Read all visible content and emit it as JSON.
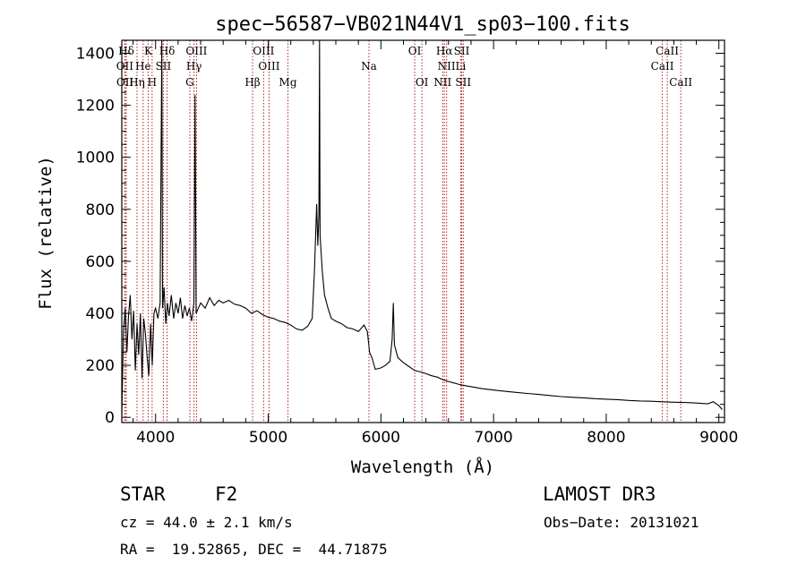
{
  "chart_data": {
    "type": "line",
    "title": "spec−56587−VB021N44V1_sp03−100.fits",
    "xlabel": "Wavelength (Å)",
    "ylabel": "Flux (relative)",
    "xlim": [
      3700,
      9050
    ],
    "ylim": [
      -20,
      1450
    ],
    "x_ticks": [
      4000,
      5000,
      6000,
      7000,
      8000,
      9000
    ],
    "y_ticks": [
      0,
      200,
      400,
      600,
      800,
      1000,
      1200,
      1400
    ],
    "line_color": "#000000",
    "marker_color": "#b22222",
    "lines": [
      {
        "label": "Hδ",
        "wavelength": 3740,
        "row": 1
      },
      {
        "label": "OII",
        "wavelength": 3727,
        "row": 2
      },
      {
        "label": "OII",
        "wavelength": 3729,
        "row": 3
      },
      {
        "label": "Hη",
        "wavelength": 3835,
        "row": 3
      },
      {
        "label": "He",
        "wavelength": 3889,
        "row": 2
      },
      {
        "label": "K",
        "wavelength": 3934,
        "row": 1
      },
      {
        "label": "H",
        "wavelength": 3969,
        "row": 3
      },
      {
        "label": "SII",
        "wavelength": 4069,
        "row": 2
      },
      {
        "label": "Hδ",
        "wavelength": 4102,
        "row": 1
      },
      {
        "label": "OIII",
        "wavelength": 4363,
        "row": 1
      },
      {
        "label": "Hγ",
        "wavelength": 4341,
        "row": 2
      },
      {
        "label": "G",
        "wavelength": 4304,
        "row": 3
      },
      {
        "label": "OIII",
        "wavelength": 4959,
        "row": 1
      },
      {
        "label": "OIII",
        "wavelength": 5007,
        "row": 2
      },
      {
        "label": "Hβ",
        "wavelength": 4861,
        "row": 3
      },
      {
        "label": "Mg",
        "wavelength": 5175,
        "row": 3
      },
      {
        "label": "Na",
        "wavelength": 5894,
        "row": 2
      },
      {
        "label": "OI",
        "wavelength": 6300,
        "row": 1
      },
      {
        "label": "OI",
        "wavelength": 6364,
        "row": 3
      },
      {
        "label": "Hα",
        "wavelength": 6563,
        "row": 1
      },
      {
        "label": "NII",
        "wavelength": 6583,
        "row": 2
      },
      {
        "label": "NII",
        "wavelength": 6548,
        "row": 3
      },
      {
        "label": "SII",
        "wavelength": 6717,
        "row": 1
      },
      {
        "label": "Li",
        "wavelength": 6708,
        "row": 2
      },
      {
        "label": "SII",
        "wavelength": 6731,
        "row": 3
      },
      {
        "label": "CaII",
        "wavelength": 8542,
        "row": 1
      },
      {
        "label": "CaII",
        "wavelength": 8498,
        "row": 2
      },
      {
        "label": "CaII",
        "wavelength": 8662,
        "row": 3
      }
    ],
    "spectrum": [
      [
        3700,
        10
      ],
      [
        3715,
        330
      ],
      [
        3730,
        420
      ],
      [
        3745,
        250
      ],
      [
        3760,
        390
      ],
      [
        3775,
        470
      ],
      [
        3790,
        300
      ],
      [
        3805,
        410
      ],
      [
        3820,
        180
      ],
      [
        3835,
        360
      ],
      [
        3850,
        240
      ],
      [
        3865,
        400
      ],
      [
        3880,
        150
      ],
      [
        3895,
        380
      ],
      [
        3910,
        320
      ],
      [
        3925,
        230
      ],
      [
        3940,
        160
      ],
      [
        3955,
        360
      ],
      [
        3970,
        200
      ],
      [
        3985,
        400
      ],
      [
        4000,
        420
      ],
      [
        4020,
        380
      ],
      [
        4040,
        440
      ],
      [
        4055,
        1450
      ],
      [
        4062,
        420
      ],
      [
        4075,
        500
      ],
      [
        4090,
        360
      ],
      [
        4105,
        440
      ],
      [
        4120,
        390
      ],
      [
        4140,
        470
      ],
      [
        4160,
        380
      ],
      [
        4180,
        440
      ],
      [
        4200,
        400
      ],
      [
        4220,
        460
      ],
      [
        4240,
        380
      ],
      [
        4260,
        430
      ],
      [
        4280,
        390
      ],
      [
        4300,
        420
      ],
      [
        4320,
        370
      ],
      [
        4340,
        440
      ],
      [
        4350,
        1240
      ],
      [
        4360,
        400
      ],
      [
        4380,
        420
      ],
      [
        4400,
        440
      ],
      [
        4440,
        420
      ],
      [
        4480,
        460
      ],
      [
        4520,
        430
      ],
      [
        4560,
        450
      ],
      [
        4600,
        440
      ],
      [
        4650,
        450
      ],
      [
        4700,
        435
      ],
      [
        4750,
        430
      ],
      [
        4800,
        420
      ],
      [
        4850,
        400
      ],
      [
        4900,
        410
      ],
      [
        4950,
        395
      ],
      [
        5000,
        385
      ],
      [
        5050,
        380
      ],
      [
        5100,
        370
      ],
      [
        5150,
        365
      ],
      [
        5200,
        355
      ],
      [
        5250,
        340
      ],
      [
        5300,
        335
      ],
      [
        5350,
        350
      ],
      [
        5390,
        380
      ],
      [
        5410,
        560
      ],
      [
        5430,
        820
      ],
      [
        5440,
        660
      ],
      [
        5450,
        780
      ],
      [
        5455,
        1450
      ],
      [
        5460,
        700
      ],
      [
        5480,
        560
      ],
      [
        5500,
        470
      ],
      [
        5530,
        420
      ],
      [
        5560,
        380
      ],
      [
        5600,
        370
      ],
      [
        5650,
        360
      ],
      [
        5700,
        345
      ],
      [
        5750,
        340
      ],
      [
        5800,
        330
      ],
      [
        5850,
        355
      ],
      [
        5880,
        330
      ],
      [
        5900,
        250
      ],
      [
        5920,
        230
      ],
      [
        5950,
        185
      ],
      [
        6000,
        190
      ],
      [
        6040,
        200
      ],
      [
        6080,
        215
      ],
      [
        6100,
        300
      ],
      [
        6110,
        440
      ],
      [
        6120,
        280
      ],
      [
        6150,
        230
      ],
      [
        6200,
        210
      ],
      [
        6250,
        195
      ],
      [
        6300,
        180
      ],
      [
        6350,
        175
      ],
      [
        6400,
        168
      ],
      [
        6450,
        160
      ],
      [
        6500,
        155
      ],
      [
        6550,
        145
      ],
      [
        6600,
        138
      ],
      [
        6650,
        132
      ],
      [
        6700,
        126
      ],
      [
        6750,
        122
      ],
      [
        6800,
        118
      ],
      [
        6900,
        110
      ],
      [
        7000,
        105
      ],
      [
        7100,
        100
      ],
      [
        7200,
        96
      ],
      [
        7300,
        92
      ],
      [
        7400,
        88
      ],
      [
        7500,
        84
      ],
      [
        7600,
        80
      ],
      [
        7700,
        77
      ],
      [
        7800,
        75
      ],
      [
        7900,
        72
      ],
      [
        8000,
        70
      ],
      [
        8100,
        68
      ],
      [
        8200,
        65
      ],
      [
        8300,
        63
      ],
      [
        8400,
        62
      ],
      [
        8500,
        60
      ],
      [
        8600,
        58
      ],
      [
        8700,
        57
      ],
      [
        8800,
        55
      ],
      [
        8900,
        52
      ],
      [
        8950,
        60
      ],
      [
        9000,
        45
      ],
      [
        9030,
        30
      ]
    ]
  },
  "footer": {
    "object_class": "STAR",
    "subclass": "F2",
    "survey": "LAMOST DR3",
    "redshift": "cz = 44.0 ± 2.1 km/s",
    "obs_date": "Obs−Date: 20131021",
    "coords": "RA =  19.52865, DEC =  44.71875"
  }
}
